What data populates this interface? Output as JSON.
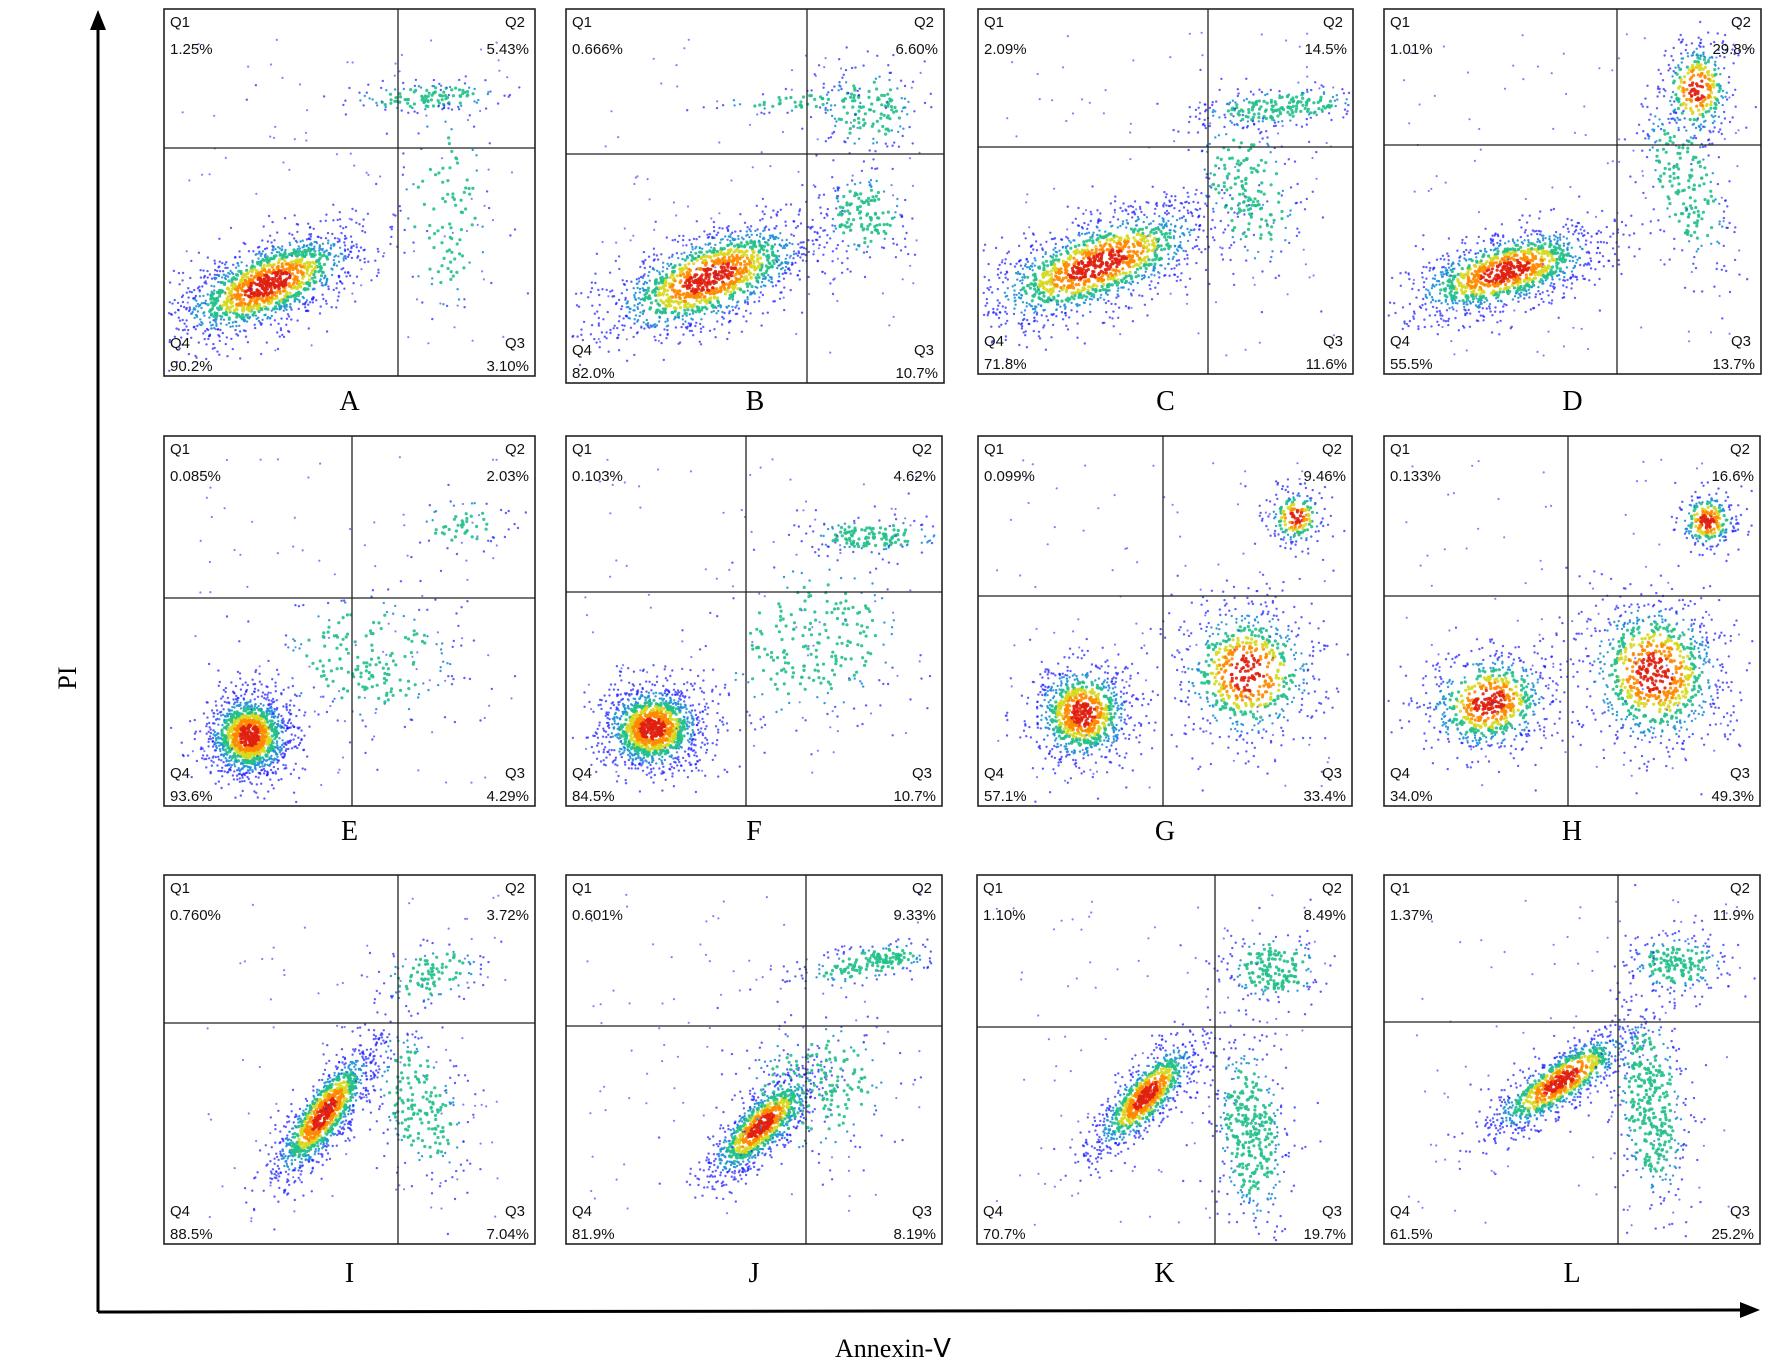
{
  "figure": {
    "x_axis_title": "Annexin-Ⅴ",
    "y_axis_title": "PI",
    "quadrant_names": [
      "Q1",
      "Q2",
      "Q3",
      "Q4"
    ],
    "colors": {
      "axis": "#000000",
      "density_scale": [
        "#1a1aff",
        "#1f8fd8",
        "#22c08a",
        "#d8d820",
        "#ff8a00",
        "#e02010"
      ]
    }
  },
  "chart_data": [
    {
      "type": "scatter",
      "panel": "A",
      "xlabel": "Annexin-Ⅴ",
      "ylabel": "PI",
      "grid": false,
      "quadrants": {
        "Q1": "1.25%",
        "Q2": "5.43%",
        "Q3": "3.10%",
        "Q4": "90.2%"
      }
    },
    {
      "type": "scatter",
      "panel": "B",
      "xlabel": "Annexin-Ⅴ",
      "ylabel": "PI",
      "grid": false,
      "quadrants": {
        "Q1": "0.666%",
        "Q2": "6.60%",
        "Q3": "10.7%",
        "Q4": "82.0%"
      }
    },
    {
      "type": "scatter",
      "panel": "C",
      "xlabel": "Annexin-Ⅴ",
      "ylabel": "PI",
      "grid": false,
      "quadrants": {
        "Q1": "2.09%",
        "Q2": "14.5%",
        "Q3": "11.6%",
        "Q4": "71.8%"
      }
    },
    {
      "type": "scatter",
      "panel": "D",
      "xlabel": "Annexin-Ⅴ",
      "ylabel": "PI",
      "grid": false,
      "quadrants": {
        "Q1": "1.01%",
        "Q2": "29.8%",
        "Q3": "13.7%",
        "Q4": "55.5%"
      }
    },
    {
      "type": "scatter",
      "panel": "E",
      "xlabel": "Annexin-Ⅴ",
      "ylabel": "PI",
      "grid": false,
      "quadrants": {
        "Q1": "0.085%",
        "Q2": "2.03%",
        "Q3": "4.29%",
        "Q4": "93.6%"
      }
    },
    {
      "type": "scatter",
      "panel": "F",
      "xlabel": "Annexin-Ⅴ",
      "ylabel": "PI",
      "grid": false,
      "quadrants": {
        "Q1": "0.103%",
        "Q2": "4.62%",
        "Q3": "10.7%",
        "Q4": "84.5%"
      }
    },
    {
      "type": "scatter",
      "panel": "G",
      "xlabel": "Annexin-Ⅴ",
      "ylabel": "PI",
      "grid": false,
      "quadrants": {
        "Q1": "0.099%",
        "Q2": "9.46%",
        "Q3": "33.4%",
        "Q4": "57.1%"
      }
    },
    {
      "type": "scatter",
      "panel": "H",
      "xlabel": "Annexin-Ⅴ",
      "ylabel": "PI",
      "grid": false,
      "quadrants": {
        "Q1": "0.133%",
        "Q2": "16.6%",
        "Q3": "49.3%",
        "Q4": "34.0%"
      }
    },
    {
      "type": "scatter",
      "panel": "I",
      "xlabel": "Annexin-Ⅴ",
      "ylabel": "PI",
      "grid": false,
      "quadrants": {
        "Q1": "0.760%",
        "Q2": "3.72%",
        "Q3": "7.04%",
        "Q4": "88.5%"
      }
    },
    {
      "type": "scatter",
      "panel": "J",
      "xlabel": "Annexin-Ⅴ",
      "ylabel": "PI",
      "grid": false,
      "quadrants": {
        "Q1": "0.601%",
        "Q2": "9.33%",
        "Q3": "8.19%",
        "Q4": "81.9%"
      }
    },
    {
      "type": "scatter",
      "panel": "K",
      "xlabel": "Annexin-Ⅴ",
      "ylabel": "PI",
      "grid": false,
      "quadrants": {
        "Q1": "1.10%",
        "Q2": "8.49%",
        "Q3": "19.7%",
        "Q4": "70.7%"
      }
    },
    {
      "type": "scatter",
      "panel": "L",
      "xlabel": "Annexin-Ⅴ",
      "ylabel": "PI",
      "grid": false,
      "quadrants": {
        "Q1": "1.37%",
        "Q2": "11.9%",
        "Q3": "25.2%",
        "Q4": "61.5%"
      }
    }
  ]
}
